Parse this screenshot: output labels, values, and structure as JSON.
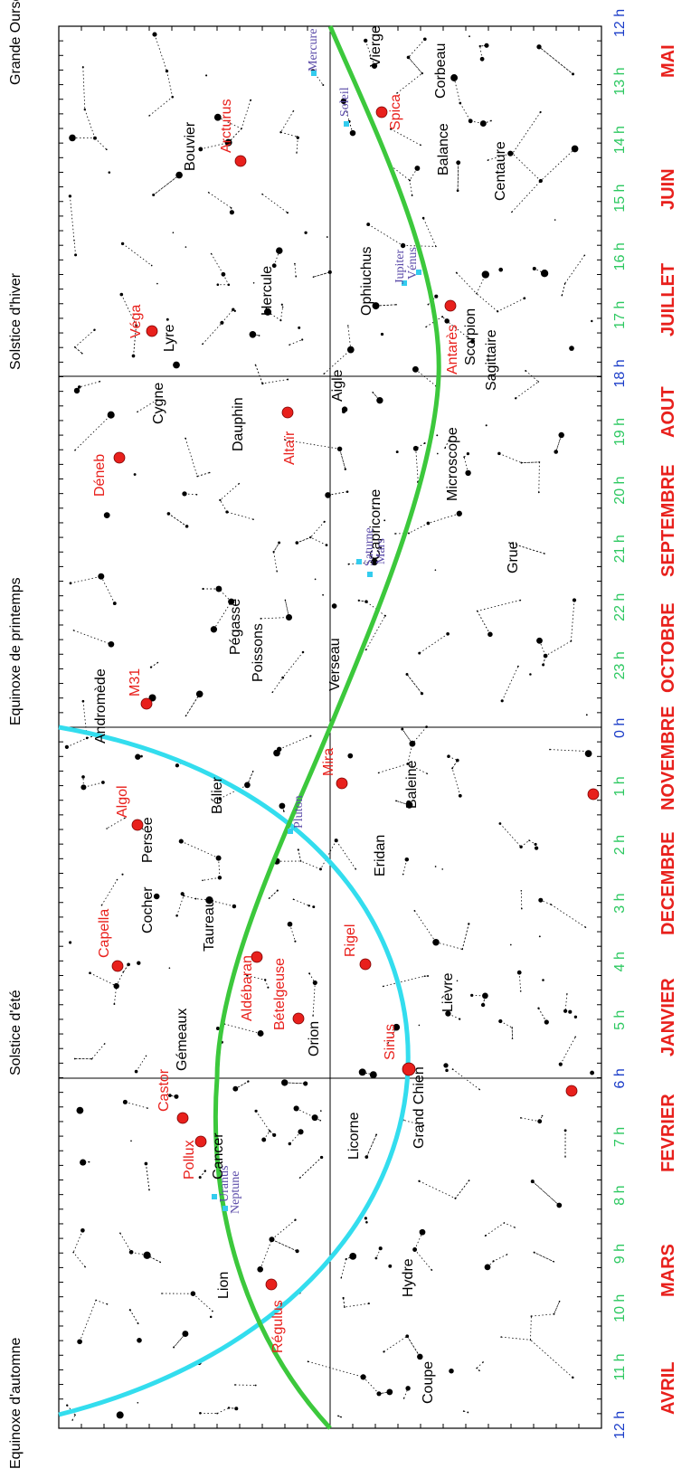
{
  "top_labels": [
    "Equinoxe d'automne",
    "Solstice d'été",
    "Equinoxe de printemps",
    "Solstice d'hiver",
    "Grande Ourse"
  ],
  "hours": [
    "12 h",
    "11 h",
    "10 h",
    "9 h",
    "8 h",
    "7 h",
    "6 h",
    "5 h",
    "4 h",
    "3 h",
    "2 h",
    "1 h",
    "0 h",
    "23 h",
    "22 h",
    "21 h",
    "20 h",
    "19 h",
    "18 h",
    "17 h",
    "16 h",
    "15 h",
    "14 h",
    "13 h",
    "12 h"
  ],
  "months": [
    "AVRIL",
    "MARS",
    "FEVRIER",
    "JANVIER",
    "DECEMBRE",
    "NOVEMBRE",
    "OCTOBRE",
    "SEPTEMBRE",
    "AOUT",
    "JUILLET",
    "JUIN",
    "MAI"
  ],
  "constellations": [
    "Lion",
    "Coupe",
    "Hydre",
    "Cancer",
    "Gémeaux",
    "Licorne",
    "Grand Chien",
    "Cocher",
    "Taureau",
    "Orion",
    "Lièvre",
    "Persée",
    "Bélier",
    "Eridan",
    "Andromède",
    "Poissons",
    "Baleine",
    "Pégasse",
    "Verseau",
    "Capricorne",
    "Grue",
    "Dauphin",
    "Cygne",
    "Aigle",
    "Microscope",
    "Lyre",
    "Sagittaire",
    "Hercule",
    "Ophiuchus",
    "Scorpion",
    "Bouvier",
    "Balance",
    "Centaure",
    "Vierge",
    "Corbeau"
  ],
  "bright_stars": [
    "Régulus",
    "Pollux",
    "Castor",
    "Sirius",
    "Bételgeuse",
    "Capella",
    "Aldébaran",
    "Rigel",
    "Algol",
    "Mira",
    "M31",
    "Altaïr",
    "Déneb",
    "Véga",
    "Antarès",
    "Arcturus",
    "Spica"
  ],
  "planets": [
    "Neptune",
    "Uranus",
    "Pluton",
    "Saturne",
    "Mars",
    "Jupiter",
    "Vénus",
    "Soleil",
    "Mercure"
  ],
  "colors": {
    "ecliptic": "#3cc83c",
    "celestial_equator": "#33ddee",
    "bright_star": "#e8201c",
    "planet_marker": "#33ccee",
    "hour_label": "#1a3cc8",
    "month_label": "#e8201c"
  }
}
